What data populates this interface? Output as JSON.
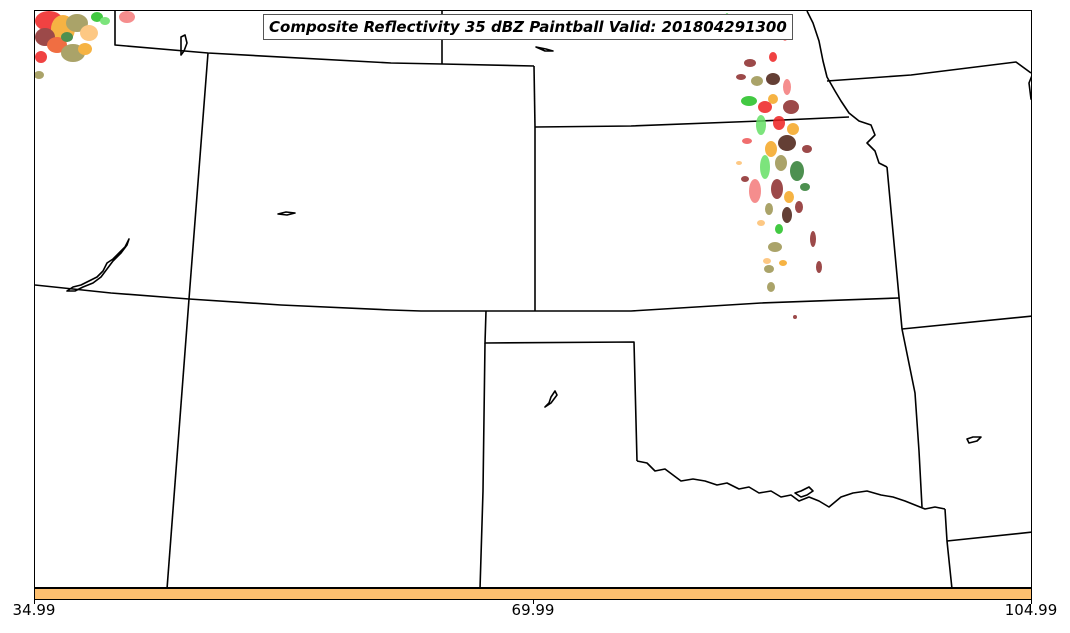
{
  "title": "Composite Reflectivity 35 dBZ Paintball Valid: 201804291300",
  "colorbar": {
    "color": "#fdbf6f",
    "ticks": [
      "34.99",
      "69.99",
      "104.99"
    ]
  },
  "colors": {
    "paint_red": "#ee2222",
    "paint_light_red": "#f47a7a",
    "paint_orange": "#f5a623",
    "paint_yellow_orange": "#fdbf6f",
    "paint_olive": "#9c9450",
    "paint_green": "#22c022",
    "paint_light_green": "#66e066",
    "paint_dark_green": "#2e7d32",
    "paint_maroon": "#8b2a2a",
    "paint_dark_brown": "#4a1e12",
    "boundary": "#000000"
  }
}
